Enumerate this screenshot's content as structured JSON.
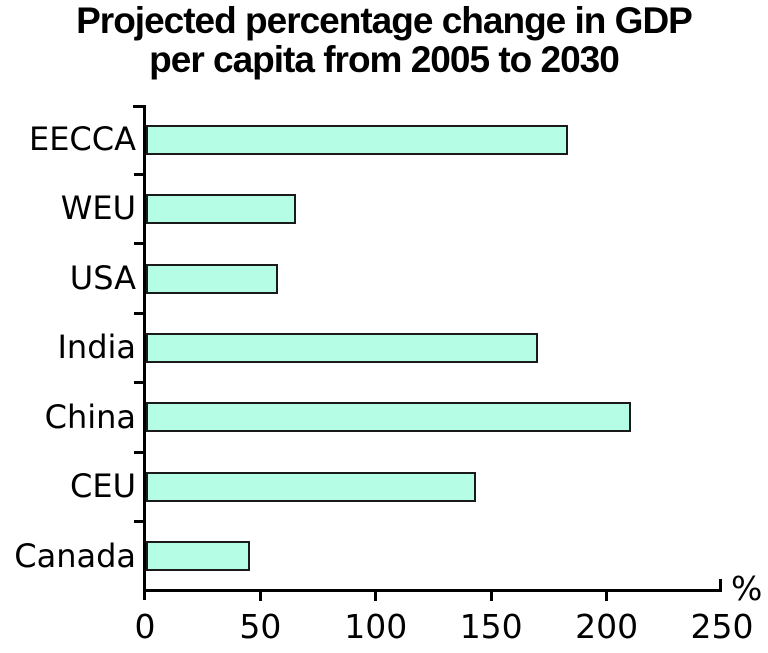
{
  "title_lines": [
    "Projected percentage change in GDP",
    "per capita from 2005 to 2030"
  ],
  "chart_data": {
    "type": "bar",
    "orientation": "horizontal",
    "title": "Projected percentage change in GDP per capita from 2005 to 2030",
    "categories": [
      "EECCA",
      "WEU",
      "USA",
      "India",
      "China",
      "CEU",
      "Canada"
    ],
    "values": [
      183,
      65,
      57,
      170,
      210,
      143,
      45
    ],
    "xlabel": "%",
    "ylabel": "",
    "xlim": [
      0,
      250
    ],
    "x_ticks": [
      0,
      50,
      100,
      150,
      200,
      250
    ],
    "grid": false,
    "legend": false,
    "bar_color": "#b5fde4",
    "bar_border_color": "#1a1a1a",
    "axis_color": "#000000",
    "text_color": "#000000"
  }
}
